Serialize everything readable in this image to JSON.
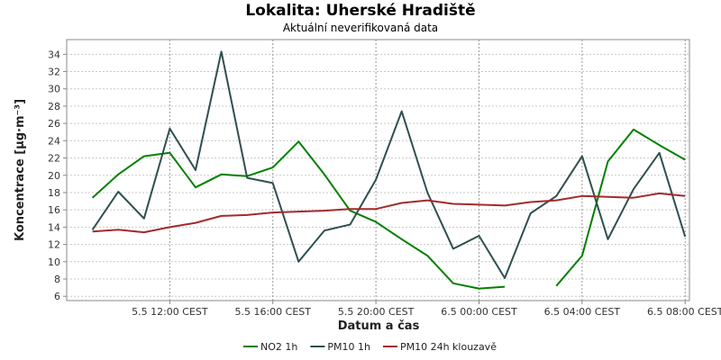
{
  "header": {
    "title": "Lokalita: Uherské Hradiště",
    "subtitle": "Aktuální neverifikovaná data"
  },
  "chart_data": {
    "type": "line",
    "title": "Lokalita: Uherské Hradiště",
    "subtitle": "Aktuální neverifikovaná data",
    "xlabel": "Datum a čas",
    "ylabel": "Koncentrace [µg·m⁻³]",
    "ylim": [
      5.5,
      35.7
    ],
    "y_ticks": [
      6,
      8,
      10,
      12,
      14,
      16,
      18,
      20,
      22,
      24,
      26,
      28,
      30,
      32,
      34
    ],
    "x_range": [
      "5.5 08:00",
      "6.5 08:10"
    ],
    "x_tick_labels": [
      "5.5 12:00 CEST",
      "5.5 16:00 CEST",
      "5.5 20:00 CEST",
      "6.5 00:00 CEST",
      "6.5 04:00 CEST",
      "6.5 08:00 CEST"
    ],
    "x": [
      "5.5 09:00",
      "5.5 10:00",
      "5.5 11:00",
      "5.5 12:00",
      "5.5 13:00",
      "5.5 14:00",
      "5.5 15:00",
      "5.5 16:00",
      "5.5 17:00",
      "5.5 18:00",
      "5.5 19:00",
      "5.5 20:00",
      "5.5 21:00",
      "5.5 22:00",
      "5.5 23:00",
      "6.5 00:00",
      "6.5 01:00",
      "6.5 02:00",
      "6.5 03:00",
      "6.5 04:00",
      "6.5 05:00",
      "6.5 06:00",
      "6.5 07:00",
      "6.5 08:00"
    ],
    "series": [
      {
        "name": "NO2 1h",
        "color": "#008000",
        "values": [
          17.4,
          20.1,
          22.2,
          22.6,
          18.6,
          20.1,
          19.9,
          20.9,
          23.9,
          20.1,
          15.9,
          14.6,
          12.6,
          10.7,
          7.5,
          6.9,
          7.1,
          null,
          7.2,
          10.7,
          21.6,
          25.3,
          23.5,
          21.8
        ]
      },
      {
        "name": "PM10 1h",
        "color": "#2f4f4f",
        "values": [
          13.7,
          18.1,
          15.0,
          25.4,
          20.6,
          34.3,
          19.7,
          19.1,
          10.0,
          13.6,
          14.3,
          19.5,
          27.4,
          18.0,
          11.5,
          13.0,
          8.1,
          15.6,
          17.6,
          22.2,
          12.6,
          18.4,
          22.6,
          12.9
        ]
      },
      {
        "name": "PM10 24h klouzavě",
        "color": "#a52a2a",
        "values": [
          13.5,
          13.7,
          13.4,
          14.0,
          14.5,
          15.3,
          15.4,
          15.7,
          15.8,
          15.9,
          16.1,
          16.1,
          16.8,
          17.1,
          16.7,
          16.6,
          16.5,
          16.9,
          17.1,
          17.6,
          17.5,
          17.4,
          17.9,
          17.6
        ]
      }
    ],
    "grid": true,
    "legend_position": "bottom"
  }
}
